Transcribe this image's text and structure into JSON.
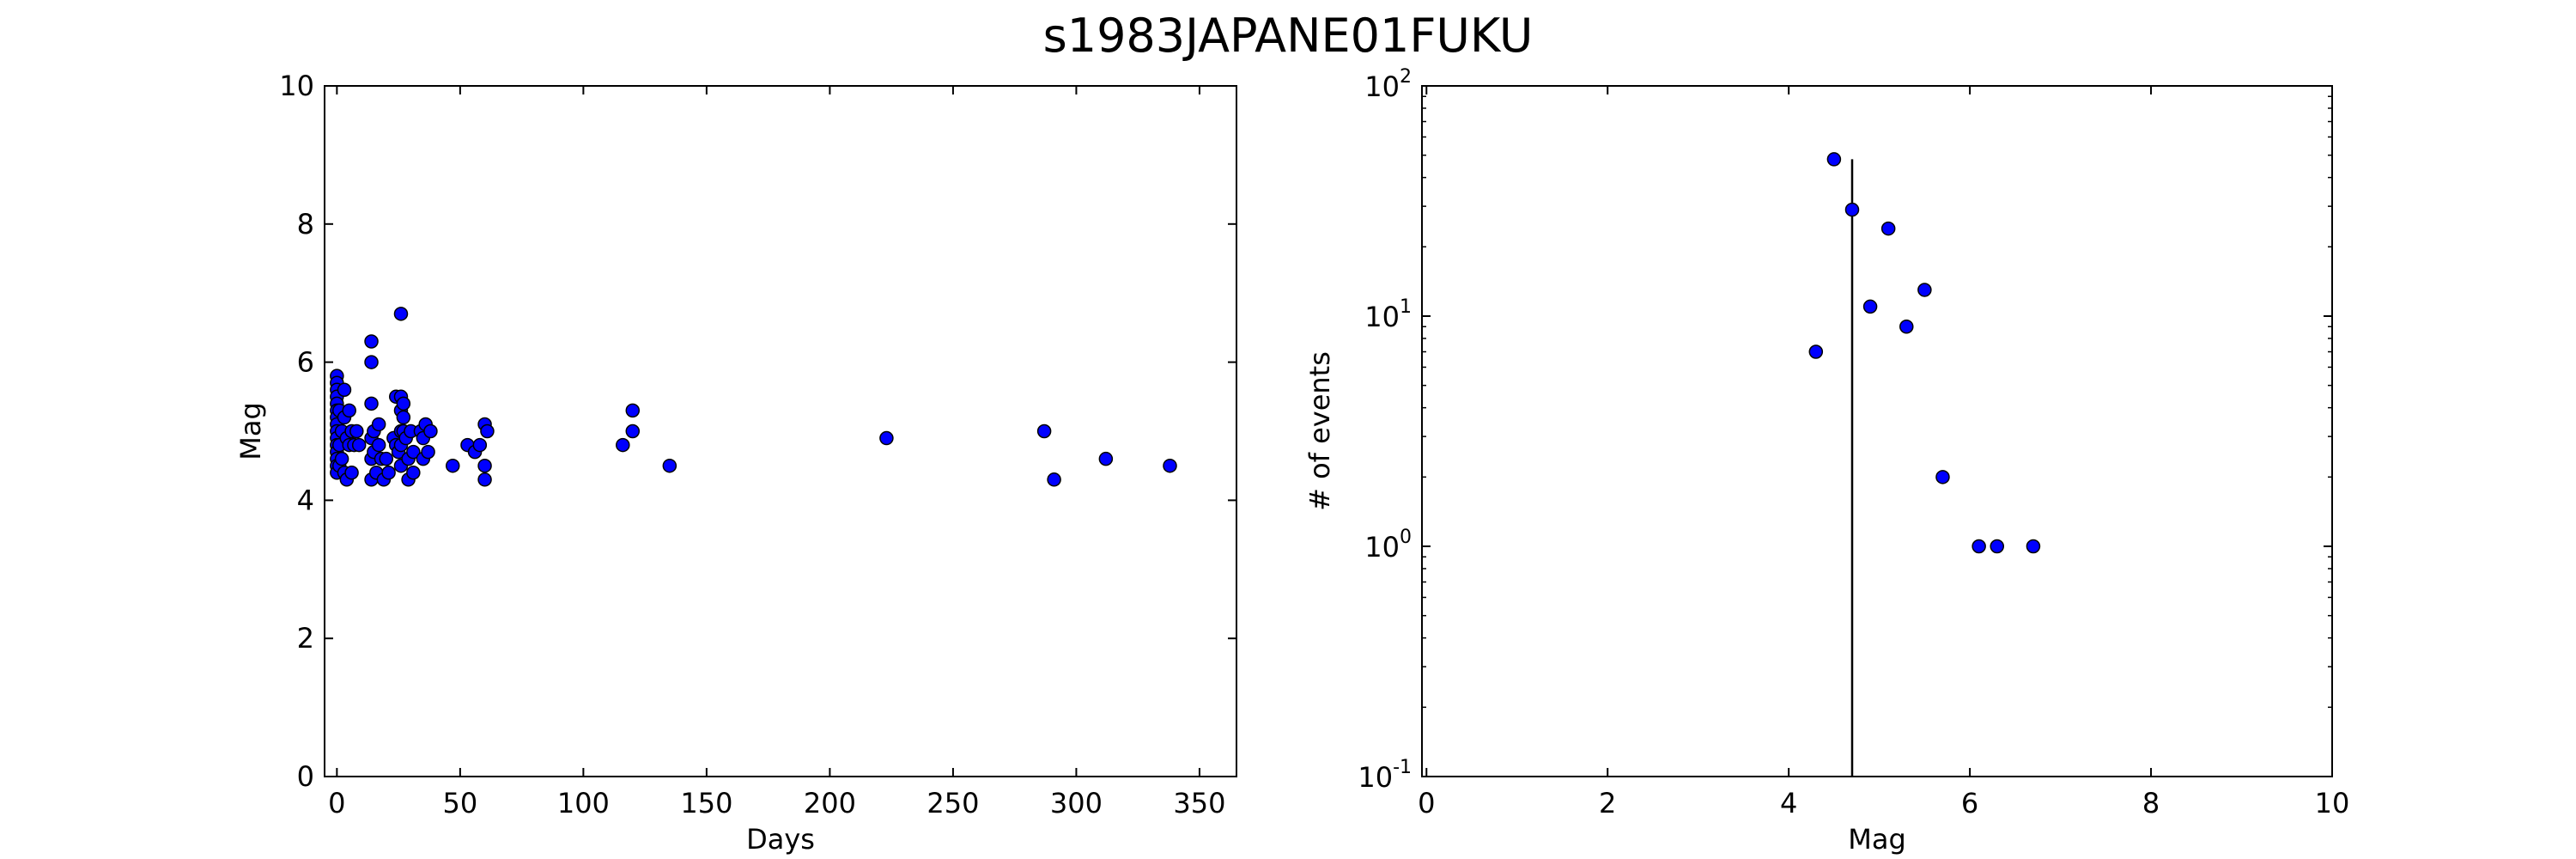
{
  "figure": {
    "title": "s1983JAPANE01FUKU"
  },
  "chart_data": [
    {
      "type": "scatter",
      "title": "",
      "xlabel": "Days",
      "ylabel": "Mag",
      "xlim": [
        -5,
        365
      ],
      "ylim": [
        0,
        10
      ],
      "xticks": [
        0,
        50,
        100,
        150,
        200,
        250,
        300,
        350
      ],
      "yticks": [
        0,
        2,
        4,
        6,
        8,
        10
      ],
      "grid": false,
      "marker_color": "#0000ff",
      "points": [
        [
          0,
          5.8
        ],
        [
          0,
          5.7
        ],
        [
          0,
          5.6
        ],
        [
          0,
          5.5
        ],
        [
          0,
          5.4
        ],
        [
          0,
          5.3
        ],
        [
          0,
          5.2
        ],
        [
          0,
          5.1
        ],
        [
          0,
          5.0
        ],
        [
          0,
          4.9
        ],
        [
          0,
          4.8
        ],
        [
          0,
          4.7
        ],
        [
          0,
          4.6
        ],
        [
          0,
          4.5
        ],
        [
          0,
          4.4
        ],
        [
          1,
          5.3
        ],
        [
          1,
          4.8
        ],
        [
          1,
          4.5
        ],
        [
          2,
          5.0
        ],
        [
          2,
          4.6
        ],
        [
          3,
          5.6
        ],
        [
          3,
          5.2
        ],
        [
          3,
          4.4
        ],
        [
          4,
          4.9
        ],
        [
          4,
          4.3
        ],
        [
          5,
          5.3
        ],
        [
          5,
          4.8
        ],
        [
          6,
          5.0
        ],
        [
          6,
          4.4
        ],
        [
          7,
          4.8
        ],
        [
          8,
          5.0
        ],
        [
          9,
          4.8
        ],
        [
          14,
          6.3
        ],
        [
          14,
          6.0
        ],
        [
          14,
          5.4
        ],
        [
          14,
          4.9
        ],
        [
          14,
          4.6
        ],
        [
          14,
          4.3
        ],
        [
          15,
          5.0
        ],
        [
          15,
          4.7
        ],
        [
          16,
          4.4
        ],
        [
          17,
          5.1
        ],
        [
          17,
          4.8
        ],
        [
          18,
          4.6
        ],
        [
          19,
          4.3
        ],
        [
          20,
          4.6
        ],
        [
          21,
          4.4
        ],
        [
          23,
          4.9
        ],
        [
          24,
          5.5
        ],
        [
          24,
          4.8
        ],
        [
          25,
          4.7
        ],
        [
          26,
          6.7
        ],
        [
          26,
          5.5
        ],
        [
          26,
          5.3
        ],
        [
          26,
          5.0
        ],
        [
          26,
          4.8
        ],
        [
          26,
          4.5
        ],
        [
          27,
          5.4
        ],
        [
          27,
          5.2
        ],
        [
          27,
          5.0
        ],
        [
          28,
          4.9
        ],
        [
          29,
          4.6
        ],
        [
          29,
          4.3
        ],
        [
          30,
          5.0
        ],
        [
          31,
          4.4
        ],
        [
          31,
          4.7
        ],
        [
          34,
          5.0
        ],
        [
          35,
          4.9
        ],
        [
          35,
          4.6
        ],
        [
          36,
          5.1
        ],
        [
          37,
          4.7
        ],
        [
          38,
          5.0
        ],
        [
          47,
          4.5
        ],
        [
          53,
          4.8
        ],
        [
          56,
          4.7
        ],
        [
          58,
          4.8
        ],
        [
          60,
          5.1
        ],
        [
          60,
          4.5
        ],
        [
          60,
          4.3
        ],
        [
          61,
          5.0
        ],
        [
          116,
          4.8
        ],
        [
          120,
          5.3
        ],
        [
          120,
          5.0
        ],
        [
          135,
          4.5
        ],
        [
          223,
          4.9
        ],
        [
          287,
          5.0
        ],
        [
          291,
          4.3
        ],
        [
          312,
          4.6
        ],
        [
          338,
          4.5
        ]
      ]
    },
    {
      "type": "scatter",
      "title": "",
      "xlabel": "Mag",
      "ylabel": "# of events",
      "xlim": [
        -0.05,
        10
      ],
      "ylim": [
        0.1,
        100
      ],
      "yscale": "log",
      "xticks": [
        0,
        2,
        4,
        6,
        8,
        10
      ],
      "yticks": [
        {
          "value": 0.1,
          "base": "10",
          "exp": "-1"
        },
        {
          "value": 1,
          "base": "10",
          "exp": "0"
        },
        {
          "value": 10,
          "base": "10",
          "exp": "1"
        },
        {
          "value": 100,
          "base": "10",
          "exp": "2"
        }
      ],
      "grid": false,
      "marker_color": "#0000ff",
      "vline": {
        "x": 4.7,
        "ymax": 48
      },
      "points": [
        [
          4.3,
          7
        ],
        [
          4.5,
          48
        ],
        [
          4.7,
          29
        ],
        [
          4.9,
          11
        ],
        [
          5.1,
          24
        ],
        [
          5.3,
          9
        ],
        [
          5.5,
          13
        ],
        [
          5.7,
          2
        ],
        [
          6.1,
          1
        ],
        [
          6.3,
          1
        ],
        [
          6.7,
          1
        ]
      ]
    }
  ]
}
